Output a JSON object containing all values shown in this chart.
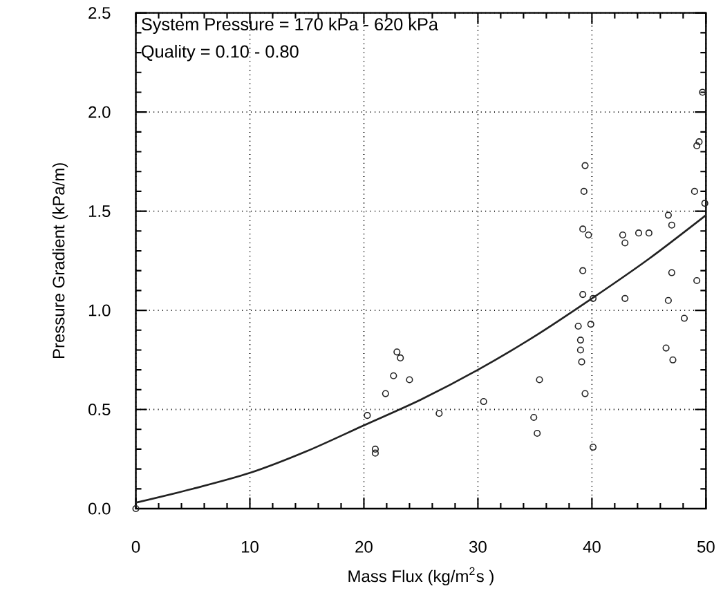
{
  "chart_data": {
    "type": "scatter",
    "xlabel": "Mass Flux (kg/m$^{2}$s )",
    "ylabel": "Pressure Gradient (kPa/m)",
    "annotations": [
      "System Pressure = 170 kPa - 620 kPa",
      "Quality = 0.10 - 0.80"
    ],
    "xlim": [
      0,
      50
    ],
    "ylim": [
      0,
      2.5
    ],
    "xticks": [
      0,
      10,
      20,
      30,
      40,
      50
    ],
    "yticks": [
      {
        "value": 0,
        "label": "0.0"
      },
      {
        "value": 0.5,
        "label": "0.5"
      },
      {
        "value": 1,
        "label": "1.0"
      },
      {
        "value": 1.5,
        "label": "1.5"
      },
      {
        "value": 2,
        "label": "2.0"
      },
      {
        "value": 2.5,
        "label": "2.5"
      }
    ],
    "grid": true,
    "marker": "circle",
    "series": [
      {
        "color": "#222222",
        "x": [
          0,
          22.9,
          23.2,
          22.6,
          24.0,
          21.9,
          20.3,
          26.6,
          21.0,
          21.0,
          30.5,
          39.2,
          39.2,
          40.1,
          42.9,
          46.7,
          47.0,
          38.8,
          39.9,
          39.0,
          39.0,
          39.1,
          35.4,
          39.4,
          46.5,
          47.1,
          34.9,
          35.2,
          40.1,
          39.4,
          39.3,
          39.2,
          39.7,
          42.7,
          42.9,
          44.1,
          45.0,
          46.7,
          47.0,
          49.7,
          49.4,
          49.2,
          49.0,
          49.9,
          49.2,
          48.1
        ],
        "values": [
          0,
          0.79,
          0.76,
          0.67,
          0.65,
          0.58,
          0.47,
          0.48,
          0.3,
          0.28,
          0.54,
          1.2,
          1.08,
          1.06,
          1.06,
          1.05,
          1.19,
          0.92,
          0.93,
          0.85,
          0.8,
          0.74,
          0.65,
          0.58,
          0.81,
          0.75,
          0.46,
          0.38,
          0.31,
          1.73,
          1.6,
          1.41,
          1.38,
          1.38,
          1.34,
          1.39,
          1.39,
          1.48,
          1.43,
          2.1,
          1.85,
          1.83,
          1.6,
          1.54,
          1.15,
          0.96
        ]
      },
      {
        "type": "line",
        "marker": "none",
        "color": "#222222",
        "x": [
          0,
          5,
          10,
          15,
          20,
          25,
          30,
          35,
          40,
          45,
          50
        ],
        "values": [
          0.03,
          0.1,
          0.18,
          0.29,
          0.42,
          0.55,
          0.7,
          0.87,
          1.06,
          1.26,
          1.48
        ]
      }
    ]
  }
}
